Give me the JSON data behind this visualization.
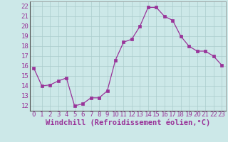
{
  "x": [
    0,
    1,
    2,
    3,
    4,
    5,
    6,
    7,
    8,
    9,
    10,
    11,
    12,
    13,
    14,
    15,
    16,
    17,
    18,
    19,
    20,
    21,
    22,
    23
  ],
  "y": [
    15.8,
    14.0,
    14.1,
    14.5,
    14.8,
    12.0,
    12.2,
    12.8,
    12.8,
    13.5,
    16.6,
    18.4,
    18.7,
    20.0,
    21.9,
    21.9,
    21.0,
    20.6,
    19.0,
    18.0,
    17.5,
    17.5,
    17.0,
    16.1
  ],
  "line_color": "#993399",
  "marker": "s",
  "marker_size": 2.5,
  "bg_color": "#cce8e8",
  "grid_color": "#aacccc",
  "xlabel": "Windchill (Refroidissement éolien,°C)",
  "xlabel_color": "#993399",
  "xlabel_fontsize": 7.5,
  "tick_color": "#993399",
  "tick_fontsize": 6.5,
  "ylim": [
    11.5,
    22.5
  ],
  "yticks": [
    12,
    13,
    14,
    15,
    16,
    17,
    18,
    19,
    20,
    21,
    22
  ],
  "xticks": [
    0,
    1,
    2,
    3,
    4,
    5,
    6,
    7,
    8,
    9,
    10,
    11,
    12,
    13,
    14,
    15,
    16,
    17,
    18,
    19,
    20,
    21,
    22,
    23
  ]
}
